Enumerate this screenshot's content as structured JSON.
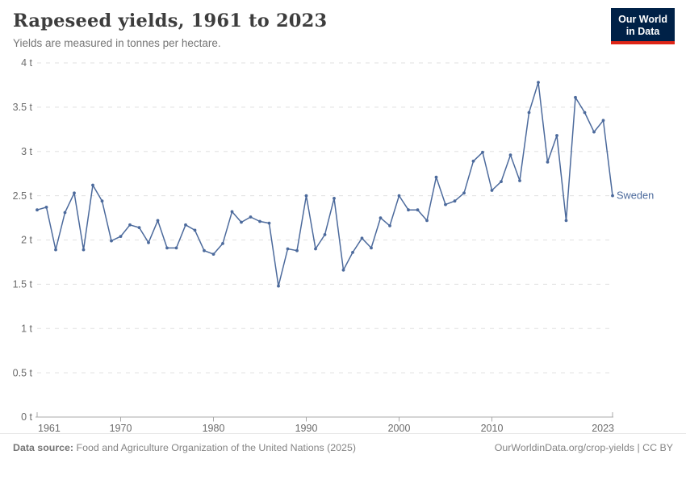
{
  "header": {
    "title": "Rapeseed yields, 1961 to 2023",
    "subtitle": "Yields are measured in tonnes per hectare.",
    "logo": {
      "line1": "Our World",
      "line2": "in Data"
    }
  },
  "chart_data": {
    "type": "line",
    "title": "Rapeseed yields, 1961 to 2023",
    "xlabel": "",
    "ylabel": "tonnes per hectare",
    "ylim": [
      0,
      4
    ],
    "y_ticks": [
      0,
      0.5,
      1,
      1.5,
      2,
      2.5,
      3,
      3.5,
      4
    ],
    "y_tick_suffix": " t",
    "x_ticks": [
      1961,
      1970,
      1980,
      1990,
      2000,
      2010,
      2023
    ],
    "grid": true,
    "legend_position": "end-of-line",
    "colors": {
      "line": "#4C6A9C",
      "grid": "#e0e0e0",
      "axis": "#a9a9a9",
      "tick_text": "#6b6b6b"
    },
    "series": [
      {
        "name": "Sweden",
        "color": "#4C6A9C",
        "x": [
          1961,
          1962,
          1963,
          1964,
          1965,
          1966,
          1967,
          1968,
          1969,
          1970,
          1971,
          1972,
          1973,
          1974,
          1975,
          1976,
          1977,
          1978,
          1979,
          1980,
          1981,
          1982,
          1983,
          1984,
          1985,
          1986,
          1987,
          1988,
          1989,
          1990,
          1991,
          1992,
          1993,
          1994,
          1995,
          1996,
          1997,
          1998,
          1999,
          2000,
          2001,
          2002,
          2003,
          2004,
          2005,
          2006,
          2007,
          2008,
          2009,
          2010,
          2011,
          2012,
          2013,
          2014,
          2015,
          2016,
          2017,
          2018,
          2019,
          2020,
          2021,
          2022,
          2023
        ],
        "values": [
          2.34,
          2.37,
          1.89,
          2.31,
          2.53,
          1.89,
          2.62,
          2.44,
          1.99,
          2.04,
          2.17,
          2.14,
          1.97,
          2.22,
          1.91,
          1.91,
          2.17,
          2.11,
          1.88,
          1.84,
          1.96,
          2.32,
          2.2,
          2.26,
          2.21,
          2.19,
          1.48,
          1.9,
          1.88,
          2.5,
          1.9,
          2.06,
          2.47,
          1.66,
          1.86,
          2.02,
          1.91,
          2.25,
          2.16,
          2.5,
          2.34,
          2.34,
          2.22,
          2.71,
          2.4,
          2.44,
          2.53,
          2.89,
          2.99,
          2.56,
          2.66,
          2.96,
          2.67,
          3.44,
          3.78,
          2.88,
          3.18,
          2.22,
          3.61,
          3.44,
          3.22,
          3.35,
          2.5
        ]
      }
    ]
  },
  "footer": {
    "source_label": "Data source:",
    "source_text": " Food and Agriculture Organization of the United Nations (2025)",
    "link_text": "OurWorldinData.org/crop-yields",
    "separator": " | ",
    "license_text": "CC BY"
  }
}
